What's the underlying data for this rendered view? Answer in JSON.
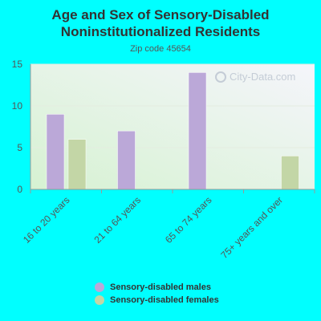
{
  "title_line1": "Age and Sex of Sensory-Disabled",
  "title_line2": "Noninstitutionalized Residents",
  "subtitle": "Zip code 45654",
  "watermark": "City-Data.com",
  "chart_data": {
    "type": "bar",
    "categories": [
      "16 to 20 years",
      "21 to 64 years",
      "65 to 74 years",
      "75+ years and over"
    ],
    "series": [
      {
        "name": "Sensory-disabled males",
        "values": [
          9,
          7,
          14,
          0
        ],
        "color": "#bba8d8"
      },
      {
        "name": "Sensory-disabled females",
        "values": [
          6,
          0,
          0,
          4
        ],
        "color": "#c3d6a6"
      }
    ],
    "yticks": [
      0,
      5,
      10,
      15
    ],
    "ylim": [
      0,
      15
    ],
    "grid": true,
    "legend_position": "bottom"
  }
}
